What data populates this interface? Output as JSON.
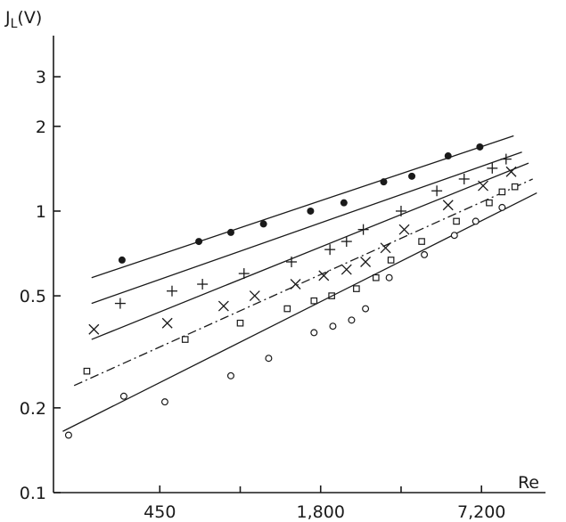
{
  "chart_data": {
    "type": "scatter",
    "title": "",
    "ylabel_main": "J",
    "ylabel_sub": "L",
    "ylabel_unit": "(V)",
    "xlabel": "Re",
    "x_scale": "log",
    "y_scale": "log",
    "xlim": [
      180,
      12500
    ],
    "ylim": [
      0.1,
      4.2
    ],
    "x_ticks": [
      {
        "value": 450,
        "label": "450"
      },
      {
        "value": 1800,
        "label": "1,800"
      },
      {
        "value": 7200,
        "label": "7,200"
      }
    ],
    "x_minor_ticks": [
      900,
      3600
    ],
    "y_ticks": [
      {
        "value": 0.1,
        "label": "0.1"
      },
      {
        "value": 0.2,
        "label": "0.2"
      },
      {
        "value": 0.5,
        "label": "0.5"
      },
      {
        "value": 1,
        "label": "1"
      },
      {
        "value": 2,
        "label": "2"
      },
      {
        "value": 3,
        "label": "3"
      }
    ],
    "grid": false,
    "legend": "none",
    "series": [
      {
        "marker": "filled-circle",
        "line": "solid",
        "line_x": [
          250,
          9500
        ],
        "line_y": [
          0.58,
          1.85
        ],
        "x": [
          325,
          630,
          830,
          1100,
          1650,
          2200,
          3100,
          3950,
          5400,
          7100
        ],
        "y": [
          0.67,
          0.78,
          0.84,
          0.9,
          1.0,
          1.07,
          1.27,
          1.33,
          1.57,
          1.69
        ]
      },
      {
        "marker": "plus",
        "line": "solid",
        "line_x": [
          250,
          10200
        ],
        "line_y": [
          0.47,
          1.62
        ],
        "x": [
          320,
          500,
          650,
          930,
          1400,
          1950,
          2250,
          2600,
          3600,
          4900,
          6200,
          7900,
          8900
        ],
        "y": [
          0.47,
          0.52,
          0.55,
          0.6,
          0.66,
          0.73,
          0.78,
          0.86,
          1.0,
          1.18,
          1.3,
          1.42,
          1.53
        ]
      },
      {
        "marker": "x",
        "line": "solid",
        "line_x": [
          250,
          10800
        ],
        "line_y": [
          0.35,
          1.48
        ],
        "x": [
          255,
          480,
          780,
          1020,
          1450,
          1850,
          2250,
          2650,
          3150,
          3700,
          5400,
          7300,
          9300
        ],
        "y": [
          0.38,
          0.4,
          0.46,
          0.5,
          0.55,
          0.59,
          0.62,
          0.66,
          0.74,
          0.86,
          1.05,
          1.23,
          1.38
        ]
      },
      {
        "marker": "open-square",
        "line": "dash-dot",
        "line_x": [
          215,
          11200
        ],
        "line_y": [
          0.24,
          1.3
        ],
        "x": [
          240,
          560,
          900,
          1350,
          1700,
          1980,
          2450,
          2900,
          3300,
          4300,
          5800,
          7700,
          8600,
          9600
        ],
        "y": [
          0.27,
          0.35,
          0.4,
          0.45,
          0.48,
          0.5,
          0.53,
          0.58,
          0.67,
          0.78,
          0.92,
          1.07,
          1.17,
          1.22
        ]
      },
      {
        "marker": "open-circle",
        "line": "dashed-middle",
        "line_x": [
          195,
          11600
        ],
        "line_y": [
          0.165,
          1.16
        ],
        "x": [
          205,
          330,
          470,
          830,
          1150,
          1700,
          2000,
          2350,
          2650,
          3250,
          4400,
          5700,
          6850,
          8600
        ],
        "y": [
          0.16,
          0.22,
          0.21,
          0.26,
          0.3,
          0.37,
          0.39,
          0.41,
          0.45,
          0.58,
          0.7,
          0.82,
          0.92,
          1.03
        ]
      }
    ]
  }
}
